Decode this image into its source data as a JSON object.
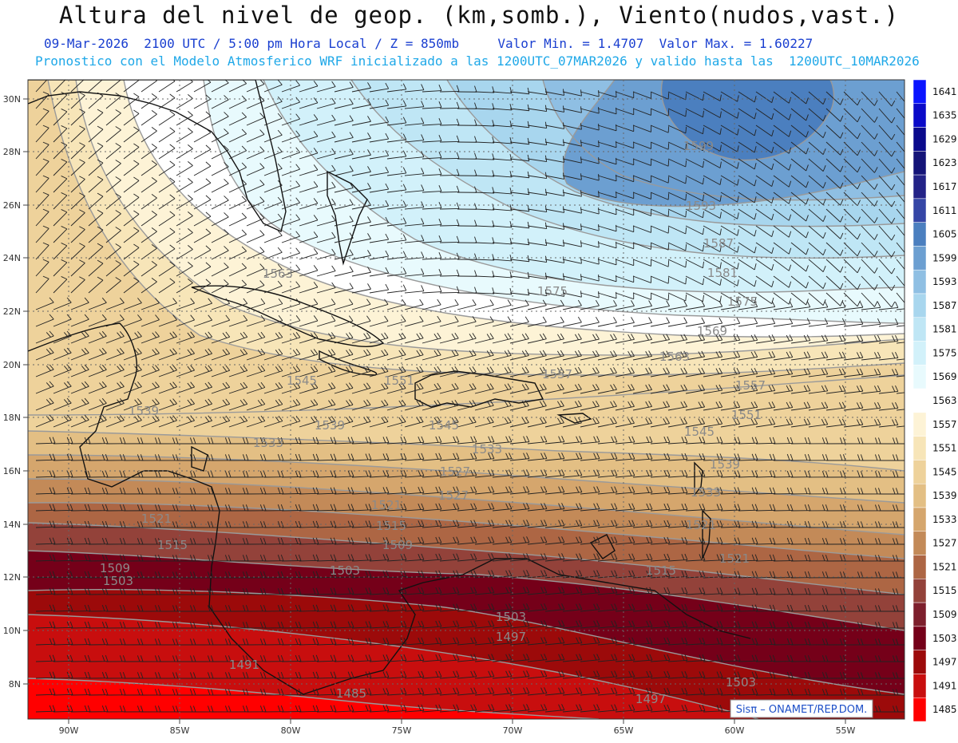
{
  "header": {
    "title": "Altura del nivel de geop. (km,somb.), Viento(nudos,vast.)",
    "line1_left": "09-Mar-2026  2100 UTC / 5:00 pm Hora Local / Z = 850mb",
    "line1_right": "Valor Min. = 1.4707  Valor Max. = 1.60227",
    "line2": "Pronostico con el Modelo Atmosferico WRF inicializado a las 1200UTC_07MAR2026 y valido hasta las  1200UTC_10MAR2026"
  },
  "map": {
    "lat_labels": [
      "30N",
      "28N",
      "26N",
      "24N",
      "22N",
      "20N",
      "18N",
      "16N",
      "14N",
      "12N",
      "10N",
      "8N"
    ],
    "lon_labels": [
      "90W",
      "85W",
      "80W",
      "75W",
      "70W",
      "65W",
      "60W",
      "55W"
    ],
    "contour_labels": [
      "1599",
      "1593",
      "1587",
      "1581",
      "1575",
      "1575",
      "1569",
      "1563",
      "1563",
      "1557",
      "1557",
      "1551",
      "1551",
      "1545",
      "1545",
      "1539",
      "1539",
      "1533",
      "1533",
      "1527",
      "1521",
      "1521",
      "1521",
      "1515",
      "1515",
      "1515",
      "1509",
      "1509",
      "1503",
      "1503",
      "1503",
      "1503",
      "1497",
      "1497",
      "1491",
      "1485",
      "1545",
      "1539",
      "1533",
      "1527",
      "1521"
    ],
    "legend_values": [
      "1641",
      "1635",
      "1629",
      "1623",
      "1617",
      "1611",
      "1605",
      "1599",
      "1593",
      "1587",
      "1581",
      "1575",
      "1569",
      "1563",
      "1557",
      "1551",
      "1545",
      "1539",
      "1533",
      "1527",
      "1521",
      "1515",
      "1509",
      "1503",
      "1497",
      "1491",
      "1485"
    ],
    "legend_colors": [
      "#0a14ff",
      "#0a0ac8",
      "#0a0a8c",
      "#141478",
      "#232387",
      "#3546a6",
      "#4b7fbf",
      "#6c9fd1",
      "#8fbfe3",
      "#a8d6ee",
      "#bfe6f5",
      "#d2f1fa",
      "#e8fafd",
      "#ffffff",
      "#fdf3d6",
      "#f7e5b8",
      "#eed29b",
      "#e3bf84",
      "#d5a66d",
      "#c38a58",
      "#ad6644",
      "#93423a",
      "#7d1f2c",
      "#750019",
      "#9c0a0a",
      "#c80e0e",
      "#ff0000"
    ],
    "credit": "Sisπ – ONAMET/REP.DOM."
  }
}
